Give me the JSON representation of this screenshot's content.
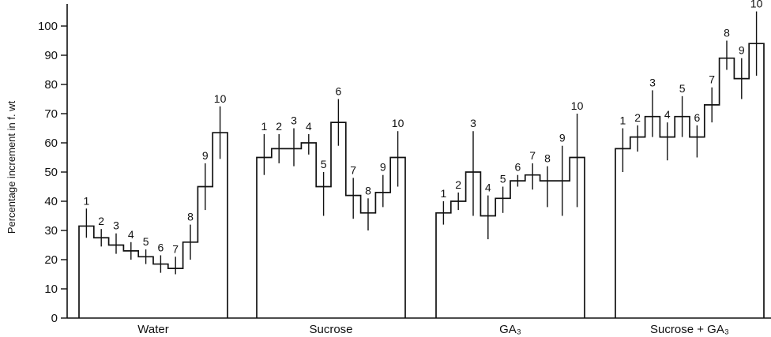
{
  "chart_data": {
    "type": "bar",
    "ylabel": "Percentage increment in f. wt",
    "ylim": [
      0,
      105
    ],
    "yticks": [
      0,
      10,
      20,
      30,
      40,
      50,
      60,
      70,
      80,
      90,
      100
    ],
    "bar_labels": [
      "1",
      "2",
      "3",
      "4",
      "5",
      "6",
      "7",
      "8",
      "9",
      "10"
    ],
    "groups": [
      {
        "name": "Water",
        "values": [
          31.5,
          27.5,
          25,
          23,
          21,
          18.5,
          17,
          26,
          45,
          63.5
        ],
        "err_low": [
          4,
          3,
          3,
          3,
          2.5,
          3,
          2,
          6,
          8,
          9
        ],
        "err_high": [
          6,
          3,
          4,
          3,
          2.5,
          3,
          4,
          6,
          8,
          9
        ]
      },
      {
        "name": "Sucrose",
        "values": [
          55,
          58,
          58,
          60,
          45,
          67,
          42,
          36,
          43,
          55
        ],
        "err_low": [
          6,
          5,
          6,
          4,
          10,
          8,
          8,
          6,
          5,
          10
        ],
        "err_high": [
          8,
          5,
          7,
          3,
          5,
          8,
          6,
          5,
          6,
          9
        ]
      },
      {
        "name": "GA₃",
        "values": [
          36,
          40,
          50,
          35,
          41,
          47,
          49,
          47,
          47,
          55
        ],
        "err_low": [
          4,
          3,
          15,
          8,
          5,
          2,
          5,
          9,
          12,
          17
        ],
        "err_high": [
          4,
          3,
          14,
          7,
          4,
          2,
          4,
          5,
          12,
          15
        ]
      },
      {
        "name": "Sucrose + GA₃",
        "values": [
          58,
          62,
          69,
          62,
          69,
          62,
          73,
          89,
          82,
          94
        ],
        "err_low": [
          8,
          5,
          7,
          8,
          7,
          7,
          6,
          4,
          7,
          11
        ],
        "err_high": [
          7,
          4,
          9,
          5,
          7,
          4,
          6,
          6,
          7,
          11
        ]
      }
    ],
    "grid": false,
    "legend": "none"
  }
}
